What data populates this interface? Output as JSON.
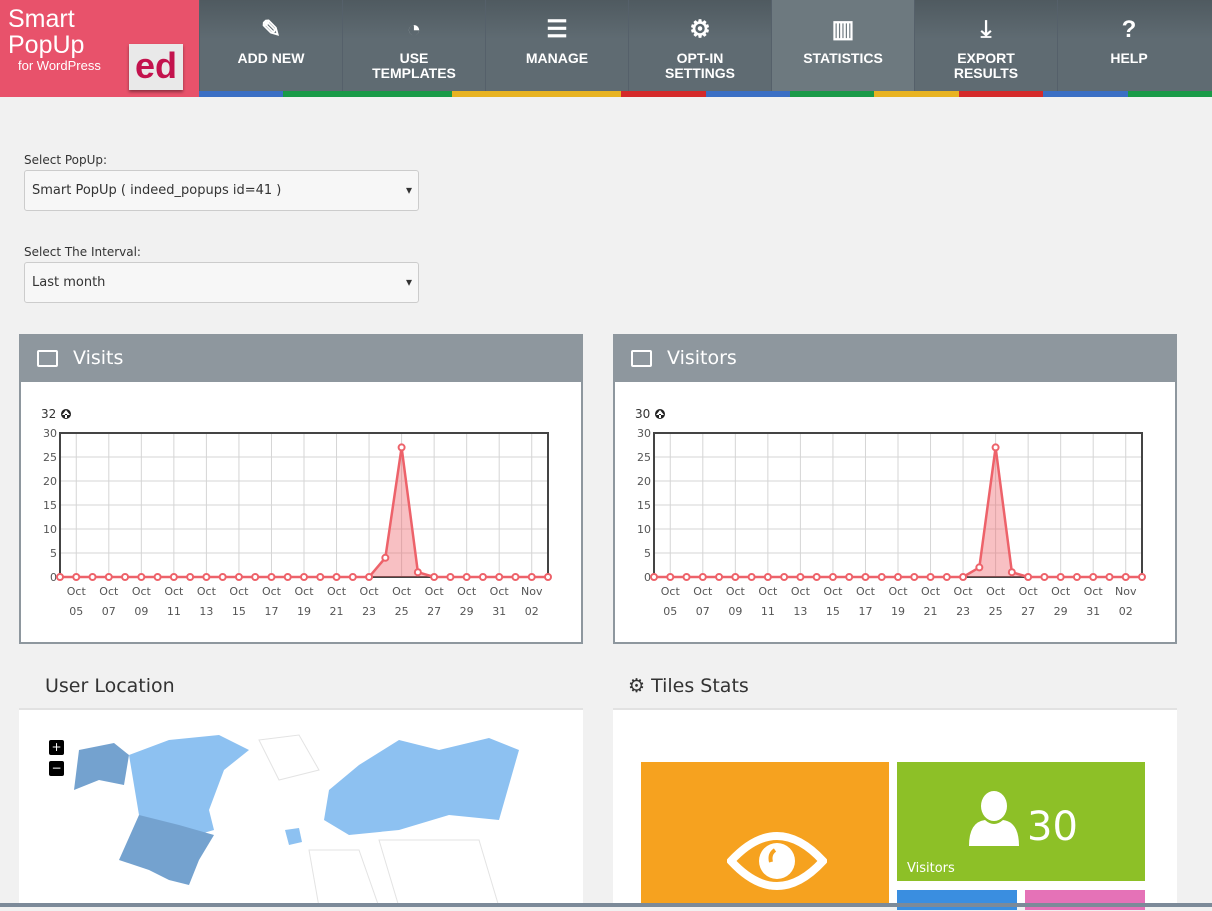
{
  "logo": {
    "line1": "Smart",
    "line2": "PopUp",
    "line3": "for WordPress",
    "badge": "ed"
  },
  "nav": [
    {
      "label": "ADD NEW",
      "icon": "edit-icon",
      "glyph": "✎"
    },
    {
      "label": "USE\nTEMPLATES",
      "icon": "dashboard-icon",
      "glyph": "◔"
    },
    {
      "label": "MANAGE",
      "icon": "list-icon",
      "glyph": "☰"
    },
    {
      "label": "OPT-IN\nSETTINGS",
      "icon": "gear-icon",
      "glyph": "⚙"
    },
    {
      "label": "STATISTICS",
      "icon": "bar-chart-icon",
      "glyph": "▥",
      "active": true
    },
    {
      "label": "EXPORT\nRESULTS",
      "icon": "download-icon",
      "glyph": "⤓"
    },
    {
      "label": "HELP",
      "icon": "help-icon",
      "glyph": "?"
    }
  ],
  "strip_colors": [
    "#3b6fc4",
    "#1a9a48",
    "#1a9a48",
    "#e8b322",
    "#e8b322",
    "#d42a2a",
    "#3b6fc4",
    "#1a9a48",
    "#e8b322",
    "#d42a2a",
    "#3b6fc4",
    "#1a9a48"
  ],
  "form": {
    "popup_label": "Select PopUp:",
    "popup_value": "Smart PopUp ( indeed_popups id=41 )",
    "interval_label": "Select The Interval:",
    "interval_value": "Last month"
  },
  "chart_data": [
    {
      "type": "area",
      "title": "Visits",
      "max_label": "32",
      "ylim": [
        0,
        30
      ],
      "yticks": [
        0,
        5,
        10,
        15,
        20,
        25,
        30
      ],
      "grid": true,
      "x": [
        "Oct 04",
        "Oct 05",
        "Oct 06",
        "Oct 07",
        "Oct 08",
        "Oct 09",
        "Oct 10",
        "Oct 11",
        "Oct 12",
        "Oct 13",
        "Oct 14",
        "Oct 15",
        "Oct 16",
        "Oct 17",
        "Oct 18",
        "Oct 19",
        "Oct 20",
        "Oct 21",
        "Oct 22",
        "Oct 23",
        "Oct 24",
        "Oct 25",
        "Oct 26",
        "Oct 27",
        "Oct 28",
        "Oct 29",
        "Oct 30",
        "Oct 31",
        "Nov 01",
        "Nov 02",
        "Nov 03"
      ],
      "values": [
        0,
        0,
        0,
        0,
        0,
        0,
        0,
        0,
        0,
        0,
        0,
        0,
        0,
        0,
        0,
        0,
        0,
        0,
        0,
        0,
        4,
        27,
        1,
        0,
        0,
        0,
        0,
        0,
        0,
        0,
        0
      ],
      "xtick_labels": [
        [
          "Oct",
          "05"
        ],
        [
          "Oct",
          "07"
        ],
        [
          "Oct",
          "09"
        ],
        [
          "Oct",
          "11"
        ],
        [
          "Oct",
          "13"
        ],
        [
          "Oct",
          "15"
        ],
        [
          "Oct",
          "17"
        ],
        [
          "Oct",
          "19"
        ],
        [
          "Oct",
          "21"
        ],
        [
          "Oct",
          "23"
        ],
        [
          "Oct",
          "25"
        ],
        [
          "Oct",
          "27"
        ],
        [
          "Oct",
          "29"
        ],
        [
          "Oct",
          "31"
        ],
        [
          "Nov",
          "02"
        ]
      ]
    },
    {
      "type": "area",
      "title": "Visitors",
      "max_label": "30",
      "ylim": [
        0,
        30
      ],
      "yticks": [
        0,
        5,
        10,
        15,
        20,
        25,
        30
      ],
      "grid": true,
      "x": [
        "Oct 04",
        "Oct 05",
        "Oct 06",
        "Oct 07",
        "Oct 08",
        "Oct 09",
        "Oct 10",
        "Oct 11",
        "Oct 12",
        "Oct 13",
        "Oct 14",
        "Oct 15",
        "Oct 16",
        "Oct 17",
        "Oct 18",
        "Oct 19",
        "Oct 20",
        "Oct 21",
        "Oct 22",
        "Oct 23",
        "Oct 24",
        "Oct 25",
        "Oct 26",
        "Oct 27",
        "Oct 28",
        "Oct 29",
        "Oct 30",
        "Oct 31",
        "Nov 01",
        "Nov 02",
        "Nov 03"
      ],
      "values": [
        0,
        0,
        0,
        0,
        0,
        0,
        0,
        0,
        0,
        0,
        0,
        0,
        0,
        0,
        0,
        0,
        0,
        0,
        0,
        0,
        2,
        27,
        1,
        0,
        0,
        0,
        0,
        0,
        0,
        0,
        0
      ],
      "xtick_labels": [
        [
          "Oct",
          "05"
        ],
        [
          "Oct",
          "07"
        ],
        [
          "Oct",
          "09"
        ],
        [
          "Oct",
          "11"
        ],
        [
          "Oct",
          "13"
        ],
        [
          "Oct",
          "15"
        ],
        [
          "Oct",
          "17"
        ],
        [
          "Oct",
          "19"
        ],
        [
          "Oct",
          "21"
        ],
        [
          "Oct",
          "23"
        ],
        [
          "Oct",
          "25"
        ],
        [
          "Oct",
          "27"
        ],
        [
          "Oct",
          "29"
        ],
        [
          "Oct",
          "31"
        ],
        [
          "Nov",
          "02"
        ]
      ]
    }
  ],
  "location": {
    "title": "User Location",
    "zoom_in": "+",
    "zoom_out": "−"
  },
  "tiles": {
    "title": "Tiles Stats",
    "visitors_count": "30",
    "visitors_label": "Visitors",
    "colors": {
      "orange": "#f6a21f",
      "green": "#8dc027",
      "blue": "#3a8ee0",
      "pink": "#e572b7"
    }
  }
}
